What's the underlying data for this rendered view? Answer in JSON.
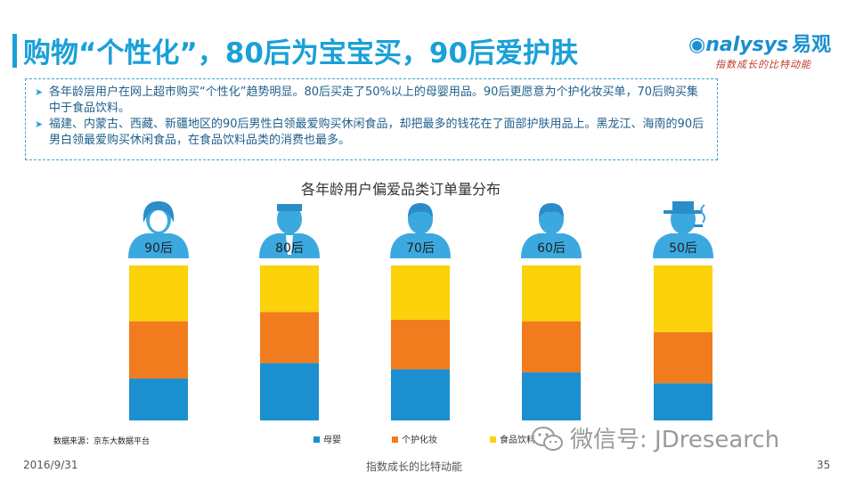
{
  "page": {
    "title": "购物“个性化”，80后为宝宝买，90后爱护肤",
    "brand_logo_en": "nalysys",
    "brand_logo_cn": "易观",
    "brand_slogan": "指数成长的比特动能",
    "bullets": [
      "各年龄层用户在网上超市购买“个性化”趋势明显。80后买走了50%以上的母婴用品。90后更愿意为个护化妆买单，70后购买集中于食品饮料。",
      "福建、内蒙古、西藏、新疆地区的90后男性白领最爱购买休闲食品，却把最多的钱花在了面部护肤用品上。黑龙江、海南的90后男白领最爱购买休闲食品，在食品饮料品类的消费也最多。"
    ],
    "source": "数据来源：京东大数据平台",
    "footer_date": "2016/9/31",
    "footer_slogan": "指数成长的比特动能",
    "page_number": "35",
    "wechat": "微信号: JDresearch"
  },
  "colors": {
    "accent": "#1aa0d8",
    "muying": "#1b8fd0",
    "gehu": "#f07c1e",
    "shipin": "#fcd20a",
    "icon": "#3ba9e0"
  },
  "chart_data": {
    "type": "bar",
    "stacked": true,
    "title": "各年龄用户偏爱品类订单量分布",
    "categories": [
      "90后",
      "80后",
      "70后",
      "60后",
      "50后"
    ],
    "icons": [
      "person-female-icon",
      "person-suit-icon",
      "person-icon",
      "person-icon",
      "person-hat-smoking-icon"
    ],
    "series": [
      {
        "name": "母婴",
        "color": "#1b8fd0",
        "values": [
          27,
          37,
          33,
          31,
          24
        ]
      },
      {
        "name": "个护化妆",
        "color": "#f07c1e",
        "values": [
          37,
          33,
          32,
          33,
          33
        ]
      },
      {
        "name": "食品饮料",
        "color": "#fcd20a",
        "values": [
          36,
          30,
          35,
          36,
          43
        ]
      }
    ],
    "ylim": [
      0,
      100
    ],
    "legend_position": "bottom"
  }
}
